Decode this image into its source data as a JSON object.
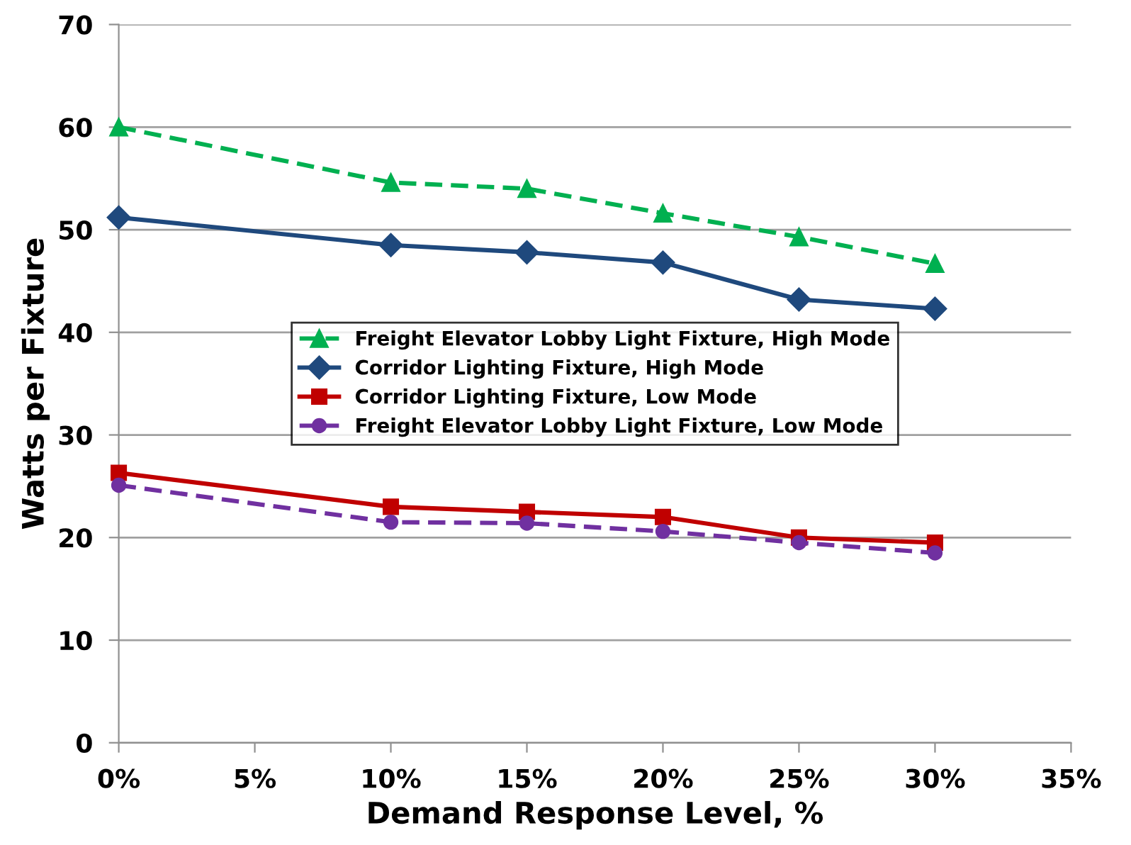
{
  "chart_data": {
    "type": "line",
    "xlabel": "Demand Response Level, %",
    "ylabel": "Watts per Fixture",
    "x": [
      0,
      10,
      15,
      20,
      25,
      30
    ],
    "series": [
      {
        "name": "Freight Elevator Lobby Light Fixture, High Mode",
        "color": "#00b050",
        "marker": "triangle",
        "line_style": "dashed",
        "values": [
          60,
          54.6,
          54.0,
          51.6,
          49.3,
          46.7
        ]
      },
      {
        "name": "Corridor Lighting Fixture, High Mode",
        "color": "#1f497d",
        "marker": "diamond",
        "line_style": "solid",
        "values": [
          51.2,
          48.5,
          47.8,
          46.8,
          43.2,
          42.3
        ]
      },
      {
        "name": "Corridor Lighting Fixture, Low Mode",
        "color": "#c00000",
        "marker": "square",
        "line_style": "solid",
        "values": [
          26.3,
          23.0,
          22.5,
          22.0,
          20.0,
          19.5
        ]
      },
      {
        "name": "Freight Elevator Lobby Light Fixture, Low Mode",
        "color": "#7030a0",
        "marker": "circle",
        "line_style": "dashed",
        "values": [
          25.1,
          21.5,
          21.4,
          20.6,
          19.5,
          18.5
        ]
      }
    ],
    "xlim": [
      0,
      35
    ],
    "xticks": [
      {
        "value": 0,
        "label": "0%"
      },
      {
        "value": 5,
        "label": "5%"
      },
      {
        "value": 10,
        "label": "10%"
      },
      {
        "value": 15,
        "label": "15%"
      },
      {
        "value": 20,
        "label": "20%"
      },
      {
        "value": 25,
        "label": "25%"
      },
      {
        "value": 30,
        "label": "30%"
      },
      {
        "value": 35,
        "label": "35%"
      }
    ],
    "ylim": [
      0,
      70
    ],
    "yticks": [
      0,
      10,
      20,
      30,
      40,
      50,
      60,
      70
    ],
    "grid": "y",
    "legend": "center"
  }
}
